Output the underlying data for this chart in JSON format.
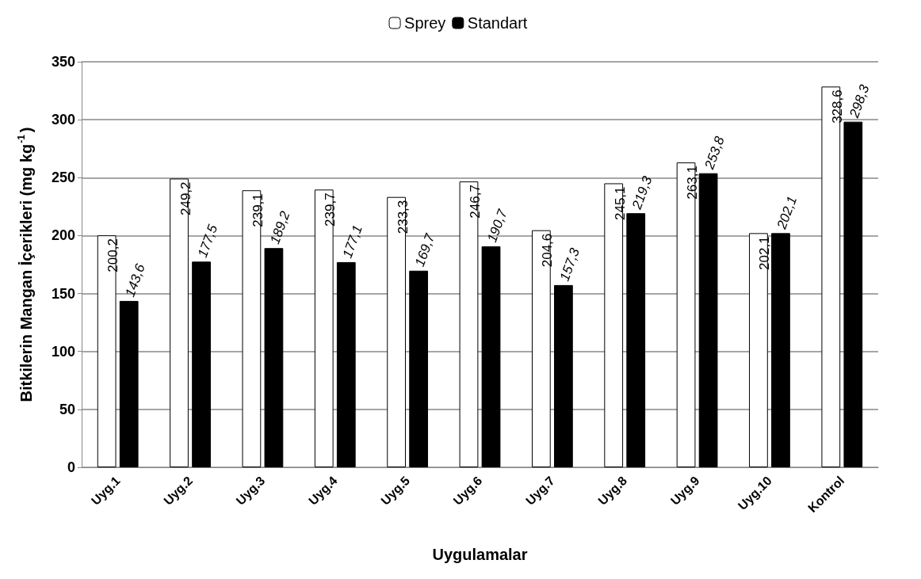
{
  "chart_data": {
    "type": "bar",
    "xlabel": "Uygulamalar",
    "ylabel": "Bitkilerin Mangan İçerikleri (mg kg$^{-1}$)",
    "categories": [
      "Uyg.1",
      "Uyg.2",
      "Uyg.3",
      "Uyg.4",
      "Uyg.5",
      "Uyg.6",
      "Uyg.7",
      "Uyg.8",
      "Uyg.9",
      "Uyg.10",
      "Kontrol"
    ],
    "series": [
      {
        "name": "Sprey",
        "color": "#ffffff",
        "values": [
          200.2,
          249.2,
          239.1,
          239.7,
          233.3,
          246.7,
          204.6,
          245.1,
          263.1,
          202.1,
          328.6
        ],
        "value_labels": [
          "200,2",
          "249,2",
          "239,1",
          "239,7",
          "233,3",
          "246,7",
          "204,6",
          "245,1",
          "263,1",
          "202,1",
          "328,6"
        ]
      },
      {
        "name": "Standart",
        "color": "#000000",
        "values": [
          143.6,
          177.5,
          189.2,
          177.1,
          169.7,
          190.7,
          157.3,
          219.3,
          253.8,
          202.1,
          298.3
        ],
        "value_labels": [
          "143,6",
          "177,5",
          "189,2",
          "177,1",
          "169,7",
          "190,7",
          "157,3",
          "219,3",
          "253,8",
          "202,1",
          "298,3"
        ]
      }
    ],
    "ylim": [
      0,
      350
    ],
    "yticks": [
      0,
      50,
      100,
      150,
      200,
      250,
      300,
      350
    ],
    "grid": "y",
    "legend": "top"
  }
}
